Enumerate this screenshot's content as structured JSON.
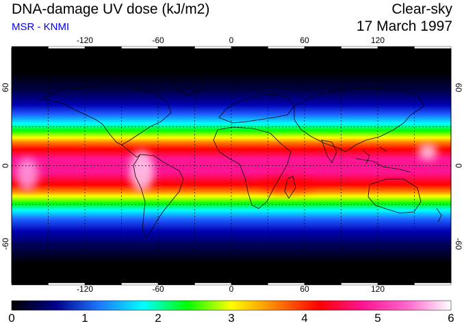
{
  "header": {
    "title": "DNA-damage UV dose (kJ/m2)",
    "subtitle": "MSR - KNMI",
    "condition": "Clear-sky",
    "date": "17 March 1997"
  },
  "map": {
    "lon_ticks": [
      {
        "value": -120,
        "label": "-120"
      },
      {
        "value": -60,
        "label": "-60"
      },
      {
        "value": 0,
        "label": "0"
      },
      {
        "value": 60,
        "label": "60"
      },
      {
        "value": 120,
        "label": "120"
      }
    ],
    "lat_ticks": [
      {
        "value": 60,
        "label": "60"
      },
      {
        "value": 0,
        "label": "0"
      },
      {
        "value": -60,
        "label": "-60"
      }
    ],
    "lon_range": [
      -180,
      180
    ],
    "lat_range": [
      -90,
      90
    ],
    "grid": true
  },
  "colorbar": {
    "range": [
      0,
      6
    ],
    "labels": [
      "0",
      "1",
      "2",
      "3",
      "4",
      "5",
      "6"
    ],
    "stops": [
      "#000000",
      "#00008b",
      "#1e78ff",
      "#00ffff",
      "#00ff00",
      "#ffff00",
      "#ff8000",
      "#ff0000",
      "#ff1493",
      "#ff66cc",
      "#ffffff"
    ]
  }
}
